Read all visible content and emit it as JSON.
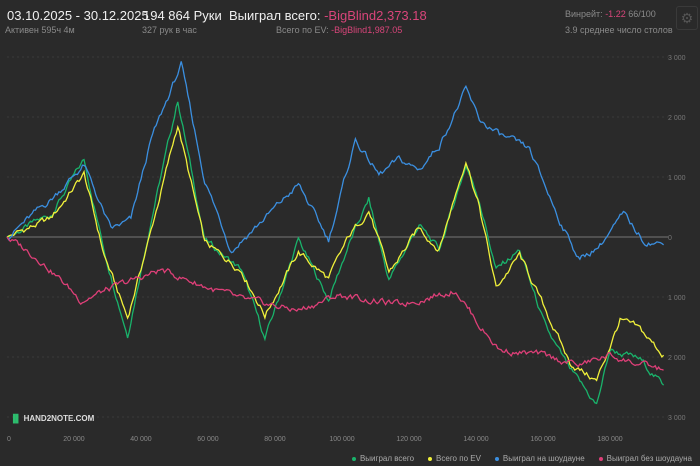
{
  "header": {
    "date_range": "03.10.2025 - 30.12.2025",
    "active": "Активен 595ч 4м",
    "hands": "194 864 Руки",
    "hands_per_hour": "327 рук в час",
    "won_label": "Выиграл всего:",
    "won_value": "-BigBlind2,373.18",
    "ev_label": "Всего по EV:",
    "ev_value": "-BigBlind1,987.05",
    "winrate_label": "Винрейт:",
    "winrate_value": "-1.22",
    "winrate_extra": "66/100",
    "tables": "3.9 среднее число столов"
  },
  "logo": "HAND2NOTE.COM",
  "chart_data": {
    "type": "line",
    "xlim": [
      0,
      196000
    ],
    "ylim": [
      -3000,
      3000
    ],
    "x_ticks": [
      "0",
      "20 000",
      "40 000",
      "60 000",
      "80 000",
      "100 000",
      "120 000",
      "140 000",
      "160 000",
      "180 000"
    ],
    "x_tick_values": [
      0,
      20000,
      40000,
      60000,
      80000,
      100000,
      120000,
      140000,
      160000,
      180000
    ],
    "y_ticks": [
      "3 000",
      "2 000",
      "1 000",
      "0",
      "1 000",
      "2 000",
      "3 000"
    ],
    "y_tick_values": [
      3000,
      2000,
      1000,
      0,
      -1000,
      -2000,
      -3000
    ],
    "series": [
      {
        "name": "Выиграл всего",
        "color": "#19b36b",
        "points": [
          [
            0,
            0
          ],
          [
            13,
            370
          ],
          [
            23,
            1280
          ],
          [
            29,
            -220
          ],
          [
            36,
            -1630
          ],
          [
            43,
            280
          ],
          [
            51,
            2280
          ],
          [
            59,
            -50
          ],
          [
            70,
            -550
          ],
          [
            77,
            -1700
          ],
          [
            87,
            -50
          ],
          [
            96,
            -1050
          ],
          [
            102,
            -130
          ],
          [
            108,
            620
          ],
          [
            114,
            -720
          ],
          [
            123,
            200
          ],
          [
            129,
            -220
          ],
          [
            137,
            1200
          ],
          [
            141,
            620
          ],
          [
            146,
            -550
          ],
          [
            153,
            -220
          ],
          [
            161,
            -1550
          ],
          [
            168,
            -2220
          ],
          [
            176,
            -2800
          ],
          [
            180,
            -1880
          ],
          [
            189,
            -2050
          ],
          [
            196,
            -2470
          ]
        ]
      },
      {
        "name": "Всего по EV",
        "color": "#f0f03a",
        "points": [
          [
            0,
            0
          ],
          [
            13,
            300
          ],
          [
            23,
            1050
          ],
          [
            29,
            -300
          ],
          [
            36,
            -1350
          ],
          [
            43,
            100
          ],
          [
            51,
            1870
          ],
          [
            59,
            -100
          ],
          [
            70,
            -550
          ],
          [
            77,
            -1300
          ],
          [
            87,
            -250
          ],
          [
            96,
            -700
          ],
          [
            102,
            0
          ],
          [
            108,
            450
          ],
          [
            114,
            -600
          ],
          [
            123,
            150
          ],
          [
            129,
            -200
          ],
          [
            137,
            1300
          ],
          [
            141,
            500
          ],
          [
            146,
            -850
          ],
          [
            153,
            -300
          ],
          [
            161,
            -1250
          ],
          [
            168,
            -2100
          ],
          [
            176,
            -2400
          ],
          [
            183,
            -1380
          ],
          [
            189,
            -1550
          ],
          [
            196,
            -1970
          ]
        ]
      },
      {
        "name": "Выиграл на шоудауне",
        "color": "#3b8fe0",
        "points": [
          [
            0,
            0
          ],
          [
            13,
            620
          ],
          [
            23,
            1200
          ],
          [
            31,
            120
          ],
          [
            37,
            280
          ],
          [
            43,
            1620
          ],
          [
            52,
            2870
          ],
          [
            59,
            950
          ],
          [
            67,
            -220
          ],
          [
            78,
            370
          ],
          [
            87,
            870
          ],
          [
            96,
            -50
          ],
          [
            104,
            1620
          ],
          [
            111,
            1030
          ],
          [
            117,
            1280
          ],
          [
            123,
            1120
          ],
          [
            129,
            1530
          ],
          [
            137,
            2450
          ],
          [
            141,
            1950
          ],
          [
            147,
            1700
          ],
          [
            156,
            1450
          ],
          [
            165,
            280
          ],
          [
            171,
            -380
          ],
          [
            177,
            -130
          ],
          [
            184,
            370
          ],
          [
            190,
            -50
          ],
          [
            196,
            -130
          ]
        ]
      },
      {
        "name": "Выиграл без шоудауна",
        "color": "#de3f78",
        "points": [
          [
            0,
            0
          ],
          [
            10,
            -380
          ],
          [
            22,
            -1050
          ],
          [
            34,
            -800
          ],
          [
            46,
            -550
          ],
          [
            58,
            -800
          ],
          [
            70,
            -1050
          ],
          [
            87,
            -1220
          ],
          [
            99,
            -970
          ],
          [
            117,
            -1130
          ],
          [
            134,
            -880
          ],
          [
            141,
            -1470
          ],
          [
            147,
            -1880
          ],
          [
            159,
            -1970
          ],
          [
            171,
            -2130
          ],
          [
            180,
            -1970
          ],
          [
            189,
            -2130
          ],
          [
            196,
            -2220
          ]
        ]
      }
    ]
  }
}
